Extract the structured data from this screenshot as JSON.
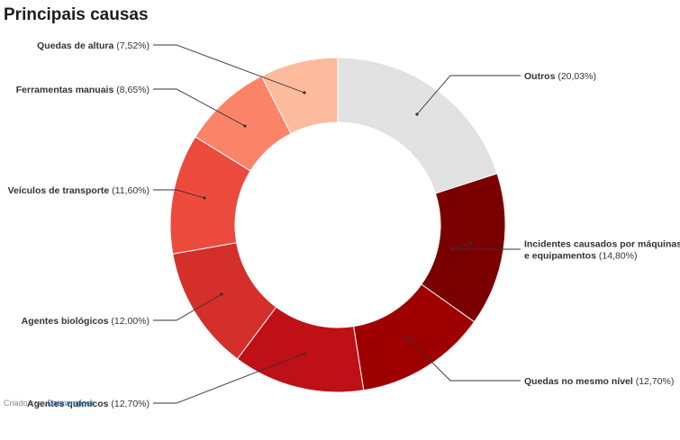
{
  "title": "Principais causas",
  "footer": {
    "prefix": "Criado com",
    "link": "Datawrapper"
  },
  "chart_data": {
    "type": "pie",
    "variant": "donut",
    "title": "Principais causas",
    "slices": [
      {
        "lines": [
          "Outros"
        ],
        "pct_label": "(20,03%)",
        "value": 20.03,
        "color": "#e1e1e1"
      },
      {
        "lines": [
          "Incidentes causados por máquinas",
          "e equipamentos"
        ],
        "pct_label": "(14,80%)",
        "value": 14.8,
        "color": "#7a0000"
      },
      {
        "lines": [
          "Quedas no mesmo nível"
        ],
        "pct_label": "(12,70%)",
        "value": 12.7,
        "color": "#9e0000"
      },
      {
        "lines": [
          "Agentes químicos"
        ],
        "pct_label": "(12,70%)",
        "value": 12.7,
        "color": "#be1016"
      },
      {
        "lines": [
          "Agentes biológicos"
        ],
        "pct_label": "(12,00%)",
        "value": 12.0,
        "color": "#d42f2a"
      },
      {
        "lines": [
          "Veículos de transporte"
        ],
        "pct_label": "(11,60%)",
        "value": 11.6,
        "color": "#ec4a3c"
      },
      {
        "lines": [
          "Ferramentas manuais"
        ],
        "pct_label": "(8,65%)",
        "value": 8.65,
        "color": "#fb8468"
      },
      {
        "lines": [
          "Quedas de altura"
        ],
        "pct_label": "(7,52%)",
        "value": 7.52,
        "color": "#fdbb9d"
      }
    ]
  }
}
